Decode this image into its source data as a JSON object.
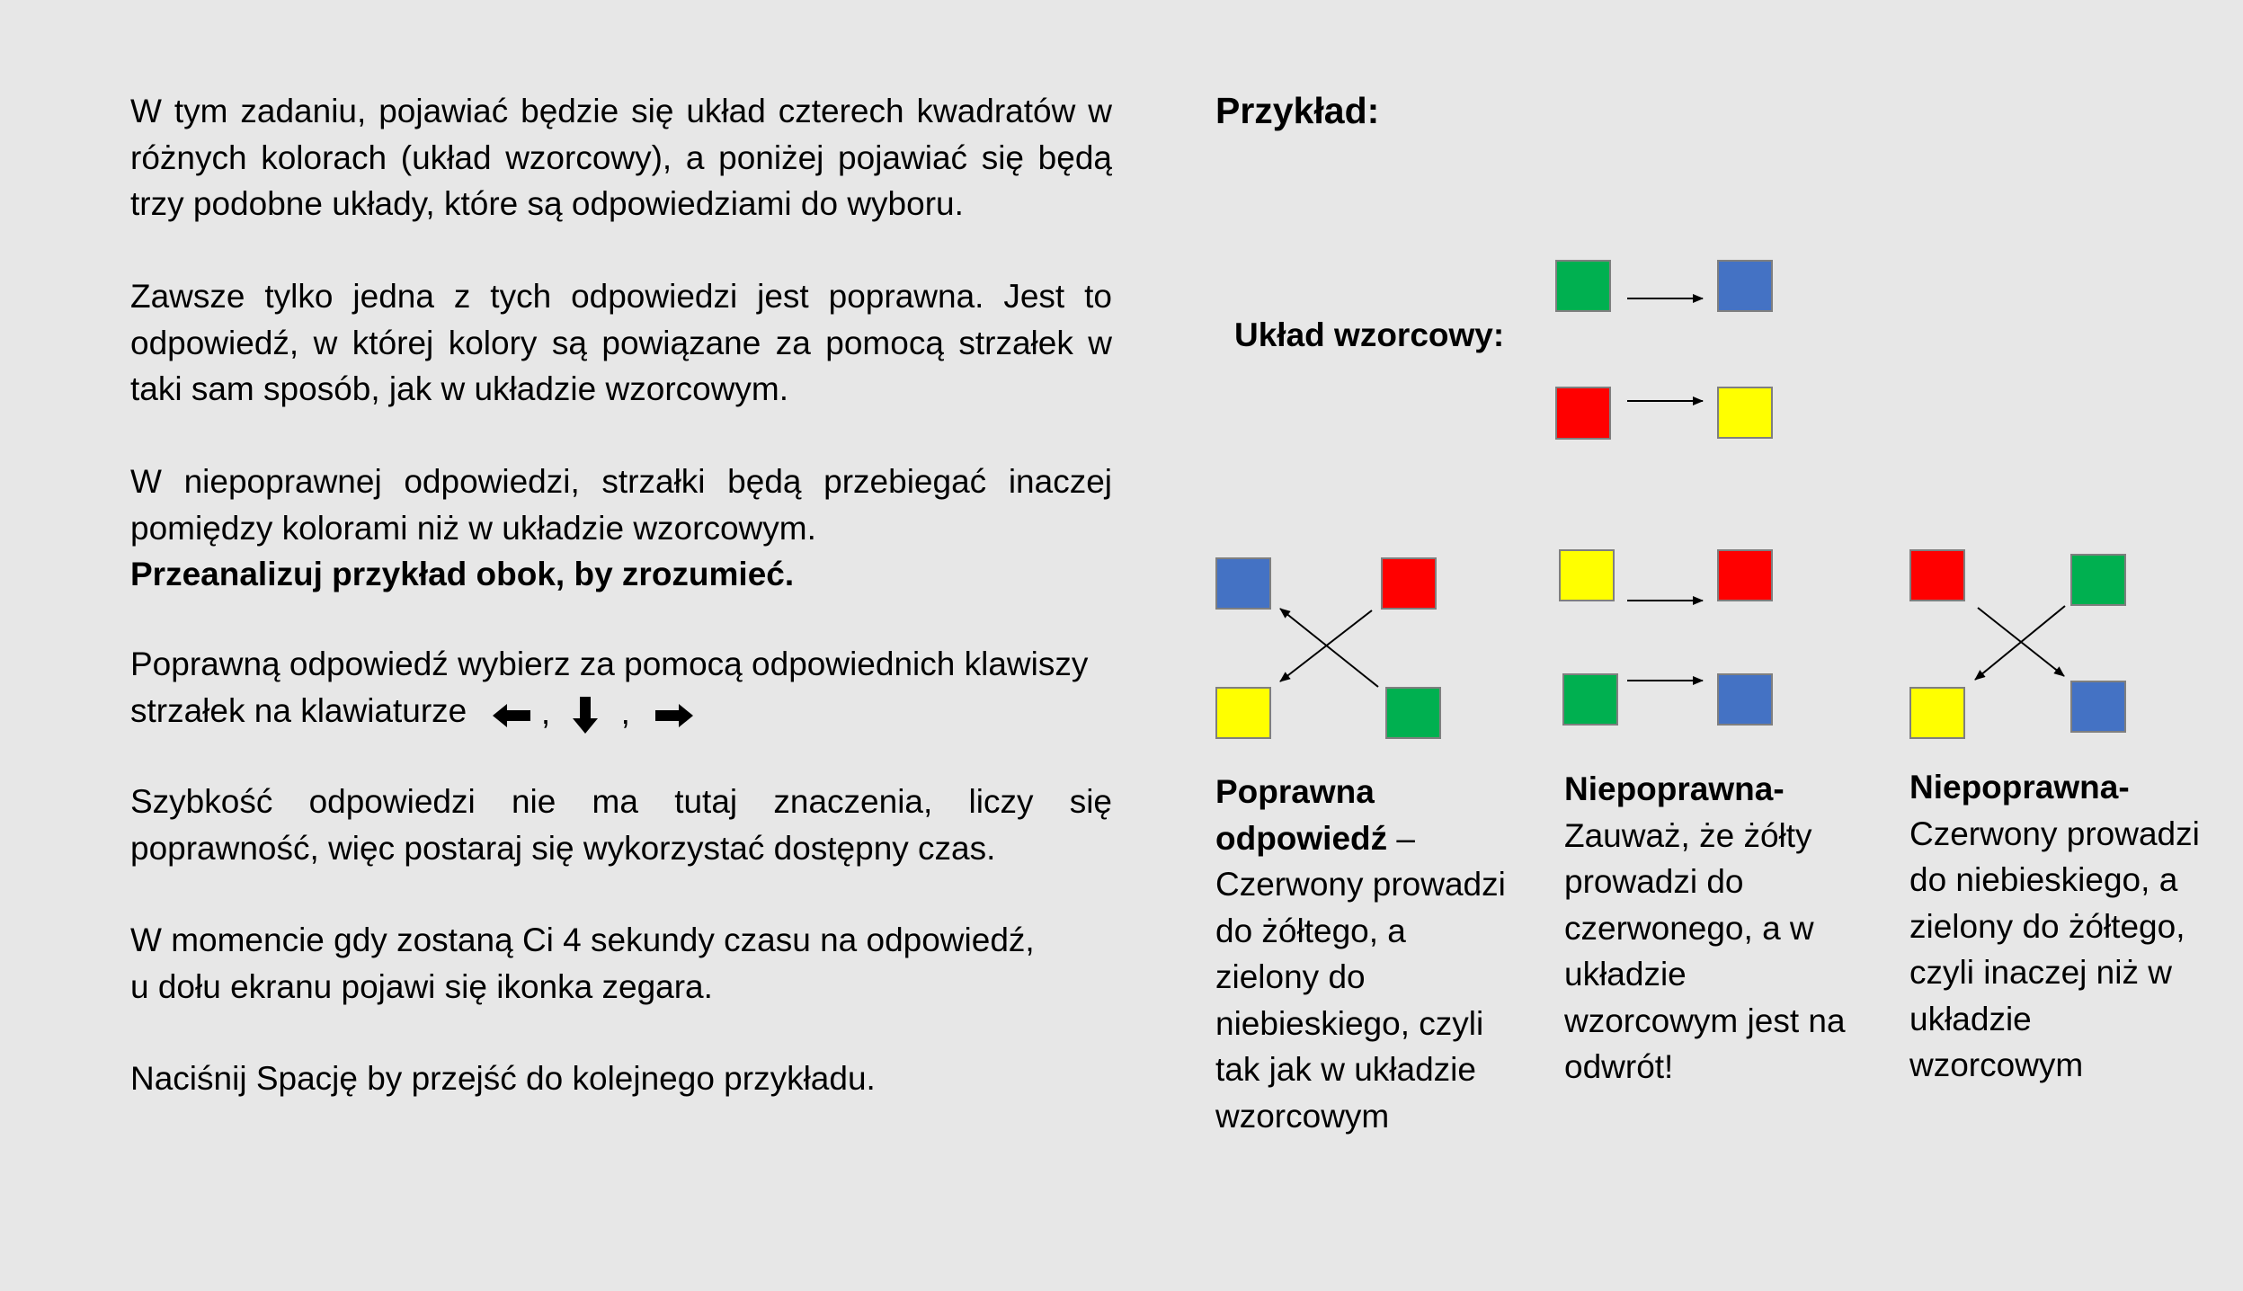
{
  "instructions": {
    "p1": "W tym zadaniu, pojawiać będzie się układ czterech kwadratów w różnych kolorach (układ wzorcowy), a poniżej pojawiać się będą trzy podobne układy, które są odpowiedziami do wyboru.",
    "p2": "Zawsze tylko jedna z tych odpowiedzi jest poprawna. Jest to odpowiedź, w której kolory są powiązane za pomocą strzałek w taki sam sposób, jak w układzie wzorcowym.",
    "p3": "W niepoprawnej odpowiedzi, strzałki będą przebiegać inaczej pomiędzy kolorami niż w układzie wzorcowym.",
    "p3_bold": "Przeanalizuj przykład obok, by zrozumieć.",
    "p4": "Poprawną odpowiedź wybierz za pomocą odpowiednich klawiszy strzałek na klawiaturze",
    "p4_sep": ",",
    "p5": "Szybkość odpowiedzi nie ma tutaj znaczenia, liczy się poprawność, więc postaraj się wykorzystać dostępny czas.",
    "p6_line1": "W momencie gdy zostaną Ci 4 sekundy czasu na odpowiedź,",
    "p6_line2": "u dołu ekranu pojawi się ikonka zegara.",
    "p7": "Naciśnij Spację by przejść do kolejnego przykładu."
  },
  "keys": [
    "left-arrow-key-icon",
    "down-arrow-key-icon",
    "right-arrow-key-icon"
  ],
  "example": {
    "heading": "Przykład:",
    "pattern_label": "Układ wzorcowy:",
    "answers": [
      {
        "title": "Poprawna odpowiedź",
        "dash": " –",
        "text": "Czerwony prowadzi do żółtego, a zielony do niebieskiego, czyli tak jak w układzie wzorcowym"
      },
      {
        "title": "Niepoprawna-",
        "text": "Zauważ, że żółty prowadzi do czerwonego, a w układzie wzorcowym jest na odwrót!"
      },
      {
        "title": "Niepoprawna-",
        "text": "Czerwony prowadzi do niebieskiego, a zielony do żółtego, czyli inaczej niż w układzie wzorcowym"
      }
    ]
  },
  "colors": {
    "background": "#e7e7e7",
    "green": "#00b050",
    "blue": "#4472c4",
    "red": "#ff0000",
    "yellow": "#ffff00",
    "square_border": "#7f7f7f"
  }
}
